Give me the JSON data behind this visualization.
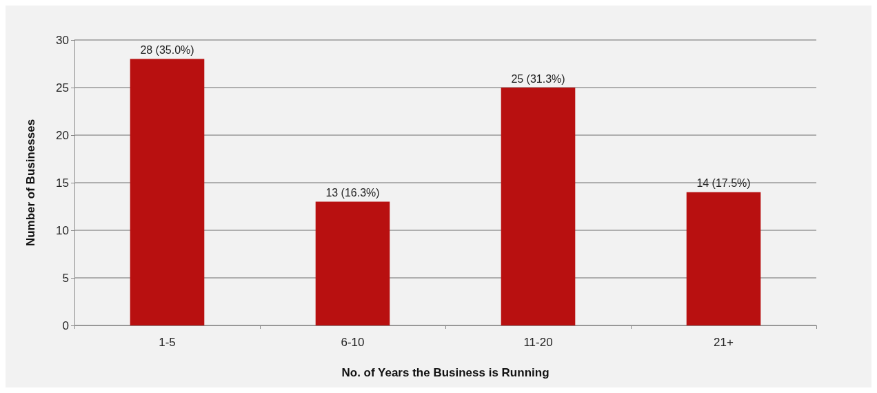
{
  "chart_data": {
    "type": "bar",
    "xlabel": "No. of Years the Business is Running",
    "ylabel": "Number of Businesses",
    "categories": [
      "1-5",
      "6-10",
      "11-20",
      "21+"
    ],
    "values": [
      28,
      13,
      25,
      14
    ],
    "value_labels": [
      "28 (35.0%)",
      "13 (16.3%)",
      "25 (31.3%)",
      "14 (17.5%)"
    ],
    "color": "#b81010",
    "ylim": [
      0,
      30
    ],
    "yticks": [
      0,
      5,
      10,
      15,
      20,
      25,
      30
    ],
    "grid": "y"
  }
}
